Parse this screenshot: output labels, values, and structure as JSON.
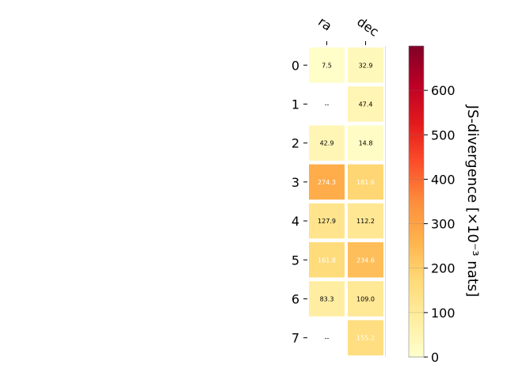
{
  "chart_data": {
    "type": "heatmap",
    "columns": [
      "ra",
      "dec"
    ],
    "rows": [
      "0",
      "1",
      "2",
      "3",
      "4",
      "5",
      "6",
      "7"
    ],
    "values": [
      [
        7.5,
        32.9
      ],
      [
        null,
        47.4
      ],
      [
        42.9,
        14.8
      ],
      [
        274.3,
        181.6
      ],
      [
        127.9,
        112.2
      ],
      [
        161.8,
        234.6
      ],
      [
        83.3,
        109.0
      ],
      [
        null,
        155.2
      ]
    ],
    "cell_labels": [
      [
        "7.5",
        "32.9"
      ],
      [
        "--",
        "47.4"
      ],
      [
        "42.9",
        "14.8"
      ],
      [
        "274.3",
        "181.6"
      ],
      [
        "127.9",
        "112.2"
      ],
      [
        "161.8",
        "234.6"
      ],
      [
        "83.3",
        "109.0"
      ],
      [
        "--",
        "155.2"
      ]
    ],
    "colorbar": {
      "label": "JS-divergence [×10⁻³ nats]",
      "range": [
        0,
        700
      ],
      "ticks": [
        "0",
        "100",
        "200",
        "300",
        "400",
        "500",
        "600"
      ],
      "colormap": "YlOrRd"
    }
  }
}
